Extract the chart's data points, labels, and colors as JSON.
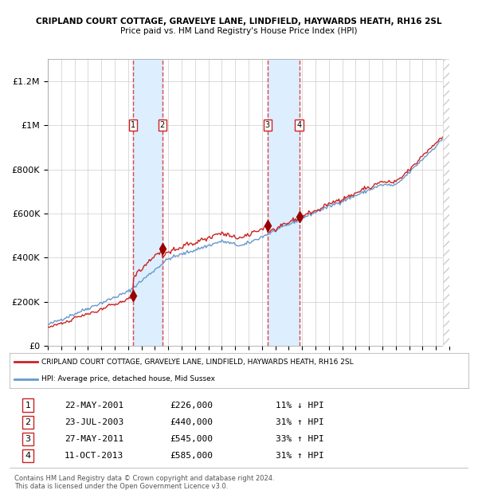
{
  "title1": "CRIPLAND COURT COTTAGE, GRAVELYE LANE, LINDFIELD, HAYWARDS HEATH, RH16 2SL",
  "title2": "Price paid vs. HM Land Registry's House Price Index (HPI)",
  "ylim": [
    0,
    1300000
  ],
  "yticks": [
    0,
    200000,
    400000,
    600000,
    800000,
    1000000,
    1200000
  ],
  "ytick_labels": [
    "£0",
    "£200K",
    "£400K",
    "£600K",
    "£800K",
    "£1M",
    "£1.2M"
  ],
  "year_start": 1995,
  "year_end": 2025,
  "sale_dates_num": [
    2001.38,
    2003.55,
    2011.4,
    2013.78
  ],
  "sale_prices": [
    226000,
    440000,
    545000,
    585000
  ],
  "sale_labels": [
    "1",
    "2",
    "3",
    "4"
  ],
  "hpi_color": "#6699cc",
  "price_color": "#cc2222",
  "sale_marker_color": "#990000",
  "vline_color": "#dd4444",
  "shade_color": "#ddeeff",
  "legend_line1": "CRIPLAND COURT COTTAGE, GRAVELYE LANE, LINDFIELD, HAYWARDS HEATH, RH16 2SL",
  "legend_line2": "HPI: Average price, detached house, Mid Sussex",
  "table_rows": [
    [
      "1",
      "22-MAY-2001",
      "£226,000",
      "11% ↓ HPI"
    ],
    [
      "2",
      "23-JUL-2003",
      "£440,000",
      "31% ↑ HPI"
    ],
    [
      "3",
      "27-MAY-2011",
      "£545,000",
      "33% ↑ HPI"
    ],
    [
      "4",
      "11-OCT-2013",
      "£585,000",
      "31% ↑ HPI"
    ]
  ],
  "footnote1": "Contains HM Land Registry data © Crown copyright and database right 2024.",
  "footnote2": "This data is licensed under the Open Government Licence v3.0.",
  "bg_color": "#ffffff",
  "grid_color": "#cccccc",
  "hatch_color": "#cccccc"
}
